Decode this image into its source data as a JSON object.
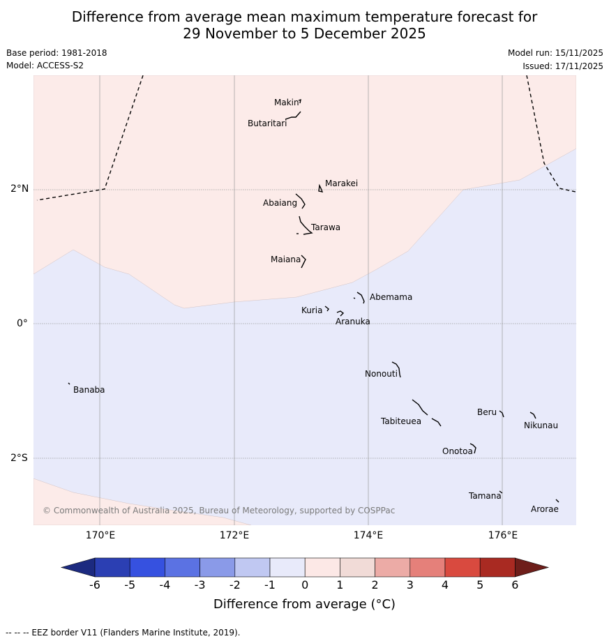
{
  "title_line1": "Difference from average mean maximum temperature forecast for",
  "title_line2": "29 November to 5 December 2025",
  "base_period": "Base period: 1981-2018",
  "model": "Model: ACCESS-S2",
  "model_run": "Model run: 15/11/2025",
  "issued": "Issued: 17/11/2025",
  "latitude_labels": [
    "2°N",
    "0°",
    "2°S"
  ],
  "longitude_labels": [
    "170°E",
    "172°E",
    "174°E",
    "176°E"
  ],
  "places": [
    "Makin",
    "Butaritari",
    "Marakei",
    "Abaiang",
    "Tarawa",
    "Maiana",
    "Abemama",
    "Kuria",
    "Aranuka",
    "Nonouti",
    "Banaba",
    "Beru",
    "Nikunau",
    "Tabiteuea",
    "Onotoa",
    "Tamana",
    "Arorae"
  ],
  "copyright": "© Commonwealth of Australia 2025, Bureau of Meteorology, supported by COSPPac",
  "colorbar": {
    "title": "Difference from average (°C)",
    "ticks": [
      "-6",
      "-5",
      "-4",
      "-3",
      "-2",
      "-1",
      "0",
      "1",
      "2",
      "3",
      "4",
      "5",
      "6"
    ],
    "colors": [
      "#1c2a80",
      "#2b3fb3",
      "#3651e0",
      "#5b72e3",
      "#8a9ae8",
      "#c0c8f2",
      "#e8eafa",
      "#fce8e6",
      "#f1dbd7",
      "#ecaba6",
      "#e5807a",
      "#d94a3f",
      "#a92a22",
      "#6e1e1a"
    ]
  },
  "footnote": "--  --  -- EEZ border V11 (Flanders Marine Institute, 2019).",
  "colors": {
    "warm_region": "#fcebe9",
    "cool_region": "#e8eafa"
  }
}
